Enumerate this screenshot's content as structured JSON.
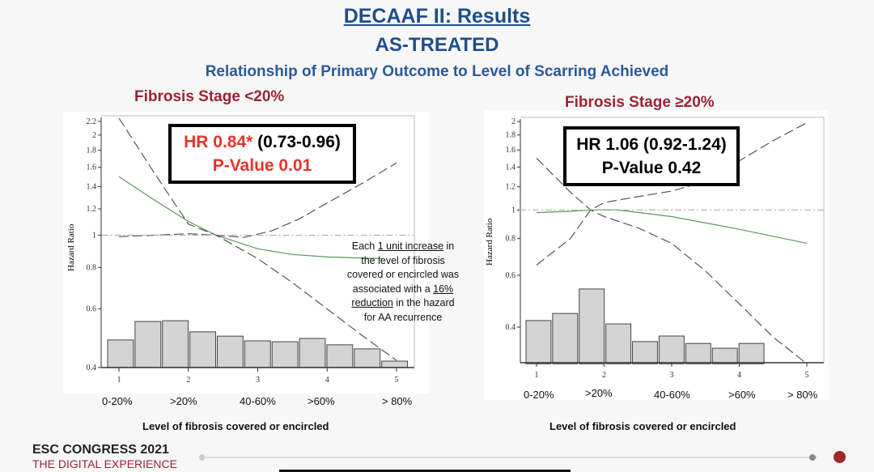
{
  "title": "DECAAF II: Results",
  "subtitle": "AS-TREATED",
  "heading": "Relationship of Primary Outcome to Level of Scarring Achieved",
  "footer": {
    "line1": "ESC CONGRESS 2021",
    "line2": "THE DIGITAL EXPERIENCE"
  },
  "colors": {
    "title": "#1f4e8c",
    "stage": "#9b2335",
    "hr_sig": "#e8332a",
    "curve": "#5a9a5a",
    "bar": "#d4d4d4"
  },
  "chart_data": [
    {
      "type": "line",
      "title": "Fibrosis Stage <20%",
      "ylabel": "Hazard Ratio",
      "xlabel": "Level of fibrosis covered or encircled",
      "yscale": "log",
      "ylim": [
        0.4,
        2.2
      ],
      "xlim": [
        0.75,
        5.25
      ],
      "yticks": [
        "0.4",
        "0.6",
        "0.8",
        "1",
        "1.2",
        "1.4",
        "1.6",
        "1.8",
        "2",
        "2.2"
      ],
      "xticks": [
        "1",
        "2",
        "3",
        "4",
        "5"
      ],
      "categories": [
        "0-20%",
        ">20%",
        "40-60%",
        ">60%",
        "> 80%"
      ],
      "hr_label": "HR 0.84*",
      "ci_label": "(0.73-0.96)",
      "p_label": "P-Value 0.01",
      "note": {
        "a": "Each ",
        "b": "1 unit increase",
        "c": " in the level of fibrosis covered or encircled was associated with a ",
        "d": "16% reduction",
        "e": " in the hazard for AA recurrence"
      },
      "bar_floor": 0.4,
      "bar_x0": 0.825,
      "bar_w": 0.395,
      "bars": [
        0.484,
        0.55,
        0.553,
        0.512,
        0.497,
        0.481,
        0.478,
        0.489,
        0.468,
        0.455,
        0.418
      ],
      "series": [
        {
          "name": "HR",
          "style": "solid",
          "points": [
            [
              1,
              1.5
            ],
            [
              1.5,
              1.28
            ],
            [
              2,
              1.1
            ],
            [
              2.4,
              1.0
            ],
            [
              3,
              0.91
            ],
            [
              3.5,
              0.875
            ],
            [
              4,
              0.86
            ],
            [
              4.8,
              0.85
            ]
          ]
        },
        {
          "name": "CI upper",
          "style": "dash",
          "points": [
            [
              1,
              0.99
            ],
            [
              1.5,
              1.0
            ],
            [
              2,
              1.01
            ],
            [
              2.4,
              1.0
            ],
            [
              2.8,
              0.985
            ],
            [
              3.2,
              1.03
            ],
            [
              3.6,
              1.12
            ],
            [
              4,
              1.25
            ],
            [
              4.5,
              1.43
            ],
            [
              5,
              1.65
            ]
          ]
        },
        {
          "name": "CI lower",
          "style": "dash",
          "points": [
            [
              1,
              2.25
            ],
            [
              1.5,
              1.55
            ],
            [
              2,
              1.08
            ],
            [
              2.4,
              1.0
            ],
            [
              3,
              0.85
            ],
            [
              3.5,
              0.72
            ],
            [
              4,
              0.6
            ],
            [
              4.5,
              0.5
            ],
            [
              5,
              0.42
            ]
          ]
        },
        {
          "name": "Reference",
          "style": "dashdot",
          "points": [
            [
              0.75,
              1
            ],
            [
              5.25,
              1
            ]
          ]
        }
      ]
    },
    {
      "type": "line",
      "title": "Fibrosis Stage ≥20%",
      "ylabel": "Hazard Ratio",
      "xlabel": "Level of fibrosis covered or encircled",
      "yscale": "log",
      "ylim": [
        0.3,
        2
      ],
      "xlim": [
        0.75,
        5.25
      ],
      "yticks": [
        "0.4",
        "0.6",
        "0.8",
        "1",
        "1.2",
        "1.4",
        "1.6",
        "1.8",
        "2"
      ],
      "xticks": [
        "1",
        "2",
        "3",
        "4",
        "5"
      ],
      "categories": [
        "0-20%",
        ">20%",
        "40-60%",
        ">60%",
        "> 80%"
      ],
      "hr_label": "HR 1.06 (0.92-1.24)",
      "p_label": "P-Value 0.42",
      "bar_floor": 0.3,
      "bar_x0": 0.832,
      "bar_w": 0.394,
      "bars": [
        0.421,
        0.445,
        0.539,
        0.41,
        0.357,
        0.373,
        0.352,
        0.339,
        0.352,
        0.3
      ],
      "series": [
        {
          "name": "HR",
          "style": "solid",
          "points": [
            [
              1,
              0.98
            ],
            [
              1.5,
              0.99
            ],
            [
              1.8,
              1.0
            ],
            [
              2.2,
              1.0
            ],
            [
              3,
              0.95
            ],
            [
              4,
              0.86
            ],
            [
              5,
              0.77
            ]
          ]
        },
        {
          "name": "CI upper",
          "style": "dash",
          "points": [
            [
              1,
              0.65
            ],
            [
              1.5,
              0.8
            ],
            [
              1.8,
              1.0
            ],
            [
              2,
              1.06
            ],
            [
              2.5,
              1.11
            ],
            [
              3,
              1.16
            ],
            [
              3.5,
              1.25
            ],
            [
              4,
              1.47
            ],
            [
              4.5,
              1.72
            ],
            [
              5,
              1.98
            ]
          ]
        },
        {
          "name": "CI lower",
          "style": "dash",
          "points": [
            [
              1,
              1.5
            ],
            [
              1.5,
              1.15
            ],
            [
              1.8,
              1.0
            ],
            [
              2,
              0.95
            ],
            [
              2.5,
              0.87
            ],
            [
              3,
              0.77
            ],
            [
              3.5,
              0.62
            ],
            [
              4,
              0.48
            ],
            [
              4.5,
              0.37
            ],
            [
              5,
              0.3
            ]
          ]
        },
        {
          "name": "Reference",
          "style": "dashdot",
          "points": [
            [
              0.75,
              1
            ],
            [
              5.25,
              1
            ]
          ]
        }
      ]
    }
  ]
}
